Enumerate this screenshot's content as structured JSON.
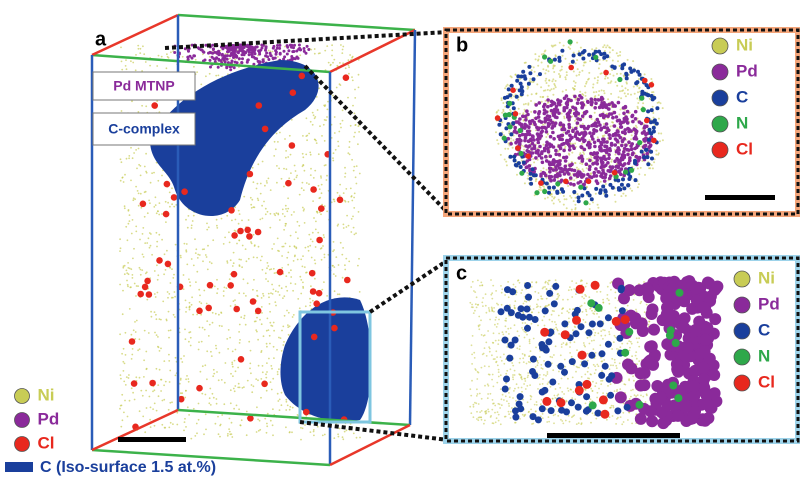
{
  "panels": [
    {
      "label": "a",
      "annotations": [
        "Pd MTNP",
        "C-complex"
      ],
      "legend": [
        {
          "name": "Ni",
          "color": "#c8cc55"
        },
        {
          "name": "Pd",
          "color": "#8a2a9a"
        },
        {
          "name": "Cl",
          "color": "#e8281e"
        }
      ],
      "isosurface": {
        "name": "C (Iso-surface 1.5 at.%)",
        "color": "#1a3f9c"
      }
    },
    {
      "label": "b",
      "legend": [
        {
          "name": "Ni",
          "color": "#c8cc55"
        },
        {
          "name": "Pd",
          "color": "#8a2a9a"
        },
        {
          "name": "C",
          "color": "#1a3f9c"
        },
        {
          "name": "N",
          "color": "#2ea84a"
        },
        {
          "name": "Cl",
          "color": "#e8281e"
        }
      ]
    },
    {
      "label": "c",
      "legend": [
        {
          "name": "Ni",
          "color": "#c8cc55"
        },
        {
          "name": "Pd",
          "color": "#8a2a9a"
        },
        {
          "name": "C",
          "color": "#1a3f9c"
        },
        {
          "name": "N",
          "color": "#2ea84a"
        },
        {
          "name": "Cl",
          "color": "#e8281e"
        }
      ]
    }
  ]
}
